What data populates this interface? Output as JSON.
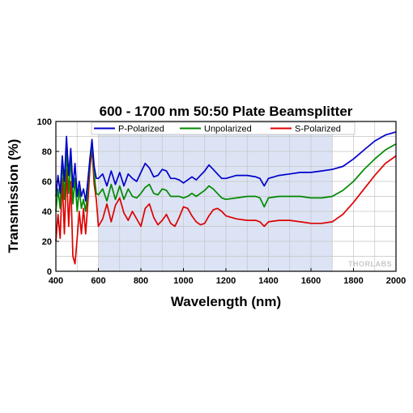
{
  "chart_data": {
    "type": "line",
    "title": "600 - 1700 nm 50:50 Plate Beamsplitter",
    "xlabel": "Wavelength (nm)",
    "ylabel": "Transmission (%)",
    "xlim": [
      400,
      2000
    ],
    "ylim": [
      0,
      100
    ],
    "xticks": [
      "400",
      "600",
      "800",
      "1000",
      "1200",
      "1400",
      "1600",
      "1800",
      "2000"
    ],
    "yticks": [
      "0",
      "20",
      "40",
      "60",
      "80",
      "100"
    ],
    "grid": true,
    "legend_position": "top",
    "shaded_region": [
      600,
      1700
    ],
    "watermark": "THORLABS",
    "series": [
      {
        "name": "P-Polarized",
        "color": "#0000cc",
        "points": [
          [
            400,
            50
          ],
          [
            410,
            64
          ],
          [
            420,
            52
          ],
          [
            430,
            77
          ],
          [
            440,
            60
          ],
          [
            450,
            90
          ],
          [
            460,
            64
          ],
          [
            470,
            82
          ],
          [
            480,
            56
          ],
          [
            490,
            72
          ],
          [
            500,
            50
          ],
          [
            510,
            60
          ],
          [
            520,
            50
          ],
          [
            530,
            55
          ],
          [
            540,
            47
          ],
          [
            550,
            60
          ],
          [
            560,
            75
          ],
          [
            570,
            88
          ],
          [
            580,
            70
          ],
          [
            590,
            62
          ],
          [
            600,
            62
          ],
          [
            620,
            65
          ],
          [
            640,
            57
          ],
          [
            660,
            67
          ],
          [
            680,
            58
          ],
          [
            700,
            66
          ],
          [
            720,
            57
          ],
          [
            740,
            65
          ],
          [
            760,
            62
          ],
          [
            780,
            60
          ],
          [
            800,
            66
          ],
          [
            820,
            72
          ],
          [
            840,
            69
          ],
          [
            860,
            63
          ],
          [
            880,
            64
          ],
          [
            900,
            68
          ],
          [
            920,
            67
          ],
          [
            940,
            62
          ],
          [
            960,
            62
          ],
          [
            980,
            61
          ],
          [
            1000,
            59
          ],
          [
            1020,
            61
          ],
          [
            1040,
            63
          ],
          [
            1060,
            61
          ],
          [
            1080,
            64
          ],
          [
            1100,
            67
          ],
          [
            1120,
            71
          ],
          [
            1140,
            68
          ],
          [
            1160,
            65
          ],
          [
            1180,
            62
          ],
          [
            1200,
            62
          ],
          [
            1250,
            64
          ],
          [
            1300,
            64
          ],
          [
            1340,
            63
          ],
          [
            1360,
            62
          ],
          [
            1380,
            57
          ],
          [
            1400,
            62
          ],
          [
            1450,
            64
          ],
          [
            1500,
            65
          ],
          [
            1550,
            66
          ],
          [
            1600,
            66
          ],
          [
            1650,
            67
          ],
          [
            1700,
            68
          ],
          [
            1750,
            70
          ],
          [
            1800,
            75
          ],
          [
            1850,
            81
          ],
          [
            1900,
            87
          ],
          [
            1950,
            91
          ],
          [
            2000,
            93
          ]
        ]
      },
      {
        "name": "Unpolarized",
        "color": "#008800",
        "points": [
          [
            400,
            40
          ],
          [
            410,
            55
          ],
          [
            420,
            42
          ],
          [
            430,
            75
          ],
          [
            440,
            48
          ],
          [
            450,
            80
          ],
          [
            460,
            52
          ],
          [
            470,
            76
          ],
          [
            480,
            45
          ],
          [
            490,
            62
          ],
          [
            500,
            40
          ],
          [
            510,
            55
          ],
          [
            520,
            42
          ],
          [
            530,
            48
          ],
          [
            540,
            40
          ],
          [
            550,
            55
          ],
          [
            560,
            72
          ],
          [
            570,
            85
          ],
          [
            580,
            65
          ],
          [
            590,
            52
          ],
          [
            600,
            51
          ],
          [
            620,
            55
          ],
          [
            640,
            47
          ],
          [
            660,
            58
          ],
          [
            680,
            48
          ],
          [
            700,
            57
          ],
          [
            720,
            48
          ],
          [
            740,
            55
          ],
          [
            760,
            50
          ],
          [
            780,
            49
          ],
          [
            800,
            52
          ],
          [
            820,
            56
          ],
          [
            840,
            58
          ],
          [
            860,
            52
          ],
          [
            880,
            51
          ],
          [
            900,
            55
          ],
          [
            920,
            54
          ],
          [
            940,
            50
          ],
          [
            960,
            50
          ],
          [
            980,
            50
          ],
          [
            1000,
            49
          ],
          [
            1020,
            50
          ],
          [
            1040,
            52
          ],
          [
            1060,
            50
          ],
          [
            1080,
            52
          ],
          [
            1100,
            54
          ],
          [
            1120,
            57
          ],
          [
            1140,
            55
          ],
          [
            1160,
            52
          ],
          [
            1180,
            49
          ],
          [
            1200,
            48
          ],
          [
            1250,
            49
          ],
          [
            1300,
            50
          ],
          [
            1340,
            50
          ],
          [
            1360,
            49
          ],
          [
            1380,
            43
          ],
          [
            1400,
            49
          ],
          [
            1450,
            50
          ],
          [
            1500,
            50
          ],
          [
            1550,
            50
          ],
          [
            1600,
            49
          ],
          [
            1650,
            49
          ],
          [
            1700,
            50
          ],
          [
            1750,
            54
          ],
          [
            1800,
            60
          ],
          [
            1850,
            68
          ],
          [
            1900,
            75
          ],
          [
            1950,
            81
          ],
          [
            2000,
            85
          ]
        ]
      },
      {
        "name": "S-Polarized",
        "color": "#dd0000",
        "points": [
          [
            400,
            20
          ],
          [
            410,
            38
          ],
          [
            420,
            22
          ],
          [
            430,
            62
          ],
          [
            440,
            25
          ],
          [
            450,
            68
          ],
          [
            460,
            30
          ],
          [
            470,
            60
          ],
          [
            480,
            10
          ],
          [
            490,
            5
          ],
          [
            500,
            22
          ],
          [
            510,
            40
          ],
          [
            520,
            25
          ],
          [
            530,
            42
          ],
          [
            540,
            25
          ],
          [
            550,
            45
          ],
          [
            560,
            68
          ],
          [
            570,
            82
          ],
          [
            580,
            58
          ],
          [
            590,
            48
          ],
          [
            600,
            30
          ],
          [
            620,
            35
          ],
          [
            640,
            45
          ],
          [
            660,
            33
          ],
          [
            680,
            44
          ],
          [
            700,
            49
          ],
          [
            720,
            39
          ],
          [
            740,
            34
          ],
          [
            760,
            40
          ],
          [
            780,
            35
          ],
          [
            800,
            30
          ],
          [
            820,
            42
          ],
          [
            840,
            45
          ],
          [
            860,
            36
          ],
          [
            880,
            31
          ],
          [
            900,
            34
          ],
          [
            920,
            38
          ],
          [
            940,
            32
          ],
          [
            960,
            30
          ],
          [
            980,
            36
          ],
          [
            1000,
            43
          ],
          [
            1020,
            42
          ],
          [
            1040,
            37
          ],
          [
            1060,
            33
          ],
          [
            1080,
            31
          ],
          [
            1100,
            32
          ],
          [
            1120,
            37
          ],
          [
            1140,
            41
          ],
          [
            1160,
            42
          ],
          [
            1180,
            40
          ],
          [
            1200,
            37
          ],
          [
            1250,
            35
          ],
          [
            1300,
            34
          ],
          [
            1340,
            34
          ],
          [
            1360,
            33
          ],
          [
            1380,
            30
          ],
          [
            1400,
            33
          ],
          [
            1450,
            34
          ],
          [
            1500,
            34
          ],
          [
            1550,
            33
          ],
          [
            1600,
            32
          ],
          [
            1650,
            32
          ],
          [
            1700,
            33
          ],
          [
            1750,
            38
          ],
          [
            1800,
            46
          ],
          [
            1850,
            55
          ],
          [
            1900,
            64
          ],
          [
            1950,
            72
          ],
          [
            2000,
            77
          ]
        ]
      }
    ]
  }
}
